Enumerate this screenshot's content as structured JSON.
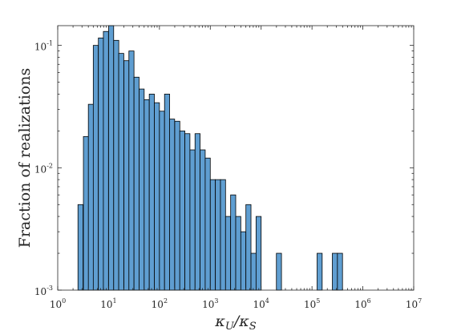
{
  "chart_data": {
    "type": "bar",
    "title": "",
    "xlabel": "κ_U/κ_S",
    "ylabel": "Fraction of realizations",
    "x_scale": "log",
    "y_scale": "log",
    "xlim": [
      1,
      10000000
    ],
    "ylim": [
      0.001,
      0.145
    ],
    "grid": false,
    "legend": "none",
    "bar_color": "#5f9ed1",
    "bin_log10_width": 0.1,
    "x_ticks": [
      {
        "base": "10",
        "exp": "0"
      },
      {
        "base": "10",
        "exp": "1"
      },
      {
        "base": "10",
        "exp": "2"
      },
      {
        "base": "10",
        "exp": "3"
      },
      {
        "base": "10",
        "exp": "4"
      },
      {
        "base": "10",
        "exp": "5"
      },
      {
        "base": "10",
        "exp": "6"
      },
      {
        "base": "10",
        "exp": "7"
      }
    ],
    "y_ticks": [
      {
        "base": "10",
        "exp": "-3"
      },
      {
        "base": "10",
        "exp": "-2"
      },
      {
        "base": "10",
        "exp": "-1"
      }
    ],
    "bins": [
      {
        "x": 2.5,
        "y": 0.005
      },
      {
        "x": 3.2,
        "y": 0.018
      },
      {
        "x": 4.0,
        "y": 0.033
      },
      {
        "x": 5.0,
        "y": 0.1
      },
      {
        "x": 6.3,
        "y": 0.115
      },
      {
        "x": 7.9,
        "y": 0.13
      },
      {
        "x": 10.0,
        "y": 0.145
      },
      {
        "x": 12.6,
        "y": 0.11
      },
      {
        "x": 15.8,
        "y": 0.086
      },
      {
        "x": 20.0,
        "y": 0.075
      },
      {
        "x": 25.1,
        "y": 0.09
      },
      {
        "x": 31.6,
        "y": 0.055
      },
      {
        "x": 39.8,
        "y": 0.044
      },
      {
        "x": 50.1,
        "y": 0.036
      },
      {
        "x": 63.1,
        "y": 0.04
      },
      {
        "x": 79.4,
        "y": 0.034
      },
      {
        "x": 100,
        "y": 0.029
      },
      {
        "x": 126,
        "y": 0.04
      },
      {
        "x": 158,
        "y": 0.025
      },
      {
        "x": 200,
        "y": 0.024
      },
      {
        "x": 251,
        "y": 0.02
      },
      {
        "x": 316,
        "y": 0.019
      },
      {
        "x": 398,
        "y": 0.014
      },
      {
        "x": 501,
        "y": 0.019
      },
      {
        "x": 631,
        "y": 0.014
      },
      {
        "x": 794,
        "y": 0.012
      },
      {
        "x": 1000,
        "y": 0.008
      },
      {
        "x": 1259,
        "y": 0.008
      },
      {
        "x": 1585,
        "y": 0.008
      },
      {
        "x": 1995,
        "y": 0.004
      },
      {
        "x": 2512,
        "y": 0.006
      },
      {
        "x": 3162,
        "y": 0.004
      },
      {
        "x": 3981,
        "y": 0.003
      },
      {
        "x": 5012,
        "y": 0.005
      },
      {
        "x": 6310,
        "y": 0.002
      },
      {
        "x": 7943,
        "y": 0.004
      },
      {
        "x": 19953,
        "y": 0.002
      },
      {
        "x": 125893,
        "y": 0.002
      },
      {
        "x": 251189,
        "y": 0.002
      },
      {
        "x": 316228,
        "y": 0.002
      }
    ]
  }
}
